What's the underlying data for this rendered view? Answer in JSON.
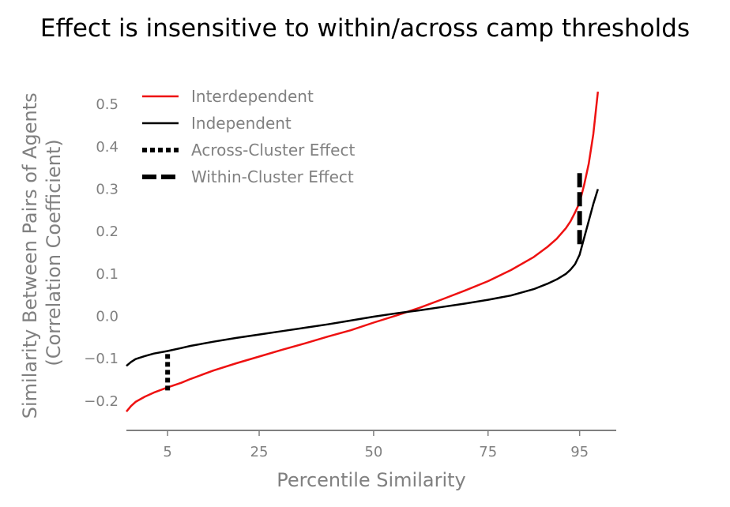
{
  "chart_data": {
    "type": "line",
    "title": "Effect is insensitive to within/across camp thresholds",
    "xlabel": "Percentile Similarity",
    "ylabel": [
      "Similarity Between Pairs of Agents",
      "(Correlation Coefficient)"
    ],
    "xlim": [
      -4,
      103
    ],
    "ylim": [
      -0.26,
      0.56
    ],
    "xticks": [
      5,
      25,
      50,
      75,
      95
    ],
    "xtick_labels": [
      "5",
      "25",
      "50",
      "75",
      "95"
    ],
    "yticks": [
      -0.2,
      -0.1,
      0.0,
      0.1,
      0.2,
      0.3,
      0.4,
      0.5
    ],
    "ytick_labels": [
      "−0.2",
      "−0.1",
      "0.0",
      "0.1",
      "0.2",
      "0.3",
      "0.4",
      "0.5"
    ],
    "grid": false,
    "legend_position": "top-left",
    "series": [
      {
        "name": "Interdependent",
        "color": "#ee1111",
        "style": "solid",
        "x": [
          -4,
          -3,
          -2,
          0,
          2,
          5,
          8,
          10,
          15,
          20,
          25,
          30,
          35,
          40,
          45,
          50,
          55,
          60,
          65,
          70,
          75,
          80,
          85,
          88,
          90,
          92,
          93,
          94,
          95,
          96,
          97,
          98,
          99
        ],
        "y": [
          -0.225,
          -0.212,
          -0.202,
          -0.19,
          -0.18,
          -0.168,
          -0.157,
          -0.148,
          -0.128,
          -0.111,
          -0.095,
          -0.079,
          -0.064,
          -0.048,
          -0.033,
          -0.015,
          0.002,
          0.02,
          0.04,
          0.061,
          0.083,
          0.109,
          0.14,
          0.164,
          0.183,
          0.208,
          0.224,
          0.245,
          0.268,
          0.31,
          0.36,
          0.43,
          0.53
        ]
      },
      {
        "name": "Independent",
        "color": "#000000",
        "style": "solid",
        "x": [
          -4,
          -3,
          -2,
          0,
          2,
          5,
          8,
          10,
          15,
          20,
          25,
          30,
          35,
          40,
          45,
          50,
          55,
          60,
          65,
          70,
          75,
          80,
          85,
          88,
          90,
          92,
          93,
          94,
          95,
          96,
          97,
          98,
          99
        ],
        "y": [
          -0.117,
          -0.108,
          -0.101,
          -0.094,
          -0.088,
          -0.082,
          -0.075,
          -0.07,
          -0.06,
          -0.051,
          -0.043,
          -0.035,
          -0.027,
          -0.019,
          -0.01,
          -0.001,
          0.007,
          0.014,
          0.022,
          0.03,
          0.039,
          0.049,
          0.064,
          0.077,
          0.087,
          0.1,
          0.11,
          0.123,
          0.145,
          0.185,
          0.225,
          0.265,
          0.3
        ]
      }
    ],
    "effects": [
      {
        "name": "Across-Cluster Effect",
        "style": "dotted",
        "color": "#000000",
        "x": 5,
        "y_from": -0.175,
        "y_to": -0.085
      },
      {
        "name": "Within-Cluster Effect",
        "style": "dashed",
        "color": "#000000",
        "x": 95,
        "y_from": 0.17,
        "y_to": 0.345
      }
    ]
  }
}
